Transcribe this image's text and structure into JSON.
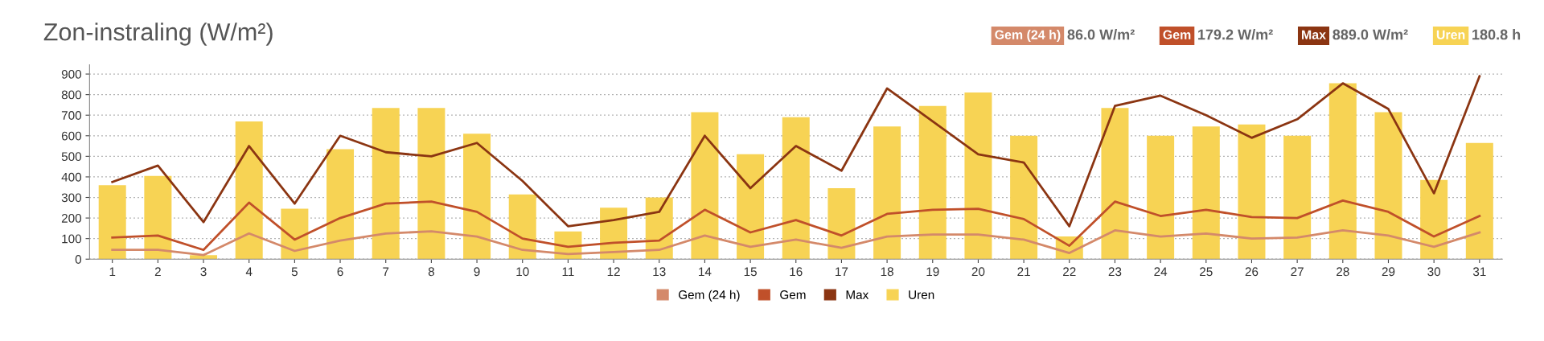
{
  "chart_data": {
    "type": "bar",
    "title": "Zon-instraling (W/m²)",
    "categories": [
      "1",
      "2",
      "3",
      "4",
      "5",
      "6",
      "7",
      "8",
      "9",
      "10",
      "11",
      "12",
      "13",
      "14",
      "15",
      "16",
      "17",
      "18",
      "19",
      "20",
      "21",
      "22",
      "23",
      "24",
      "25",
      "26",
      "27",
      "28",
      "29",
      "30",
      "31"
    ],
    "series": [
      {
        "name": "Gem (24 h)",
        "type": "line",
        "color": "#d4896a",
        "values": [
          45,
          45,
          20,
          125,
          40,
          90,
          125,
          135,
          110,
          45,
          25,
          35,
          45,
          115,
          60,
          95,
          55,
          110,
          120,
          120,
          95,
          30,
          140,
          110,
          125,
          100,
          105,
          140,
          115,
          60,
          130
        ]
      },
      {
        "name": "Gem",
        "type": "line",
        "color": "#c0502a",
        "values": [
          105,
          115,
          45,
          275,
          95,
          200,
          270,
          280,
          230,
          100,
          60,
          80,
          90,
          240,
          130,
          190,
          115,
          220,
          240,
          245,
          195,
          65,
          280,
          210,
          240,
          205,
          200,
          285,
          230,
          110,
          210
        ]
      },
      {
        "name": "Max",
        "type": "line",
        "color": "#8b3512",
        "values": [
          375,
          455,
          180,
          550,
          270,
          600,
          520,
          500,
          565,
          380,
          160,
          190,
          230,
          600,
          345,
          550,
          430,
          830,
          670,
          510,
          470,
          160,
          745,
          795,
          700,
          590,
          680,
          855,
          730,
          320,
          889
        ]
      },
      {
        "name": "Uren",
        "color": "#f7d354",
        "values": [
          360,
          405,
          20,
          670,
          245,
          535,
          735,
          735,
          610,
          315,
          135,
          250,
          300,
          715,
          510,
          690,
          345,
          645,
          745,
          810,
          600,
          110,
          735,
          600,
          645,
          655,
          600,
          855,
          715,
          385,
          565
        ]
      }
    ],
    "annotations": [
      "86.0 W/m²",
      "179.2 W/m²",
      "889.0 W/m²",
      "180.8 h"
    ],
    "ylim": [
      0,
      945
    ],
    "yticks": [
      0,
      100,
      200,
      300,
      400,
      500,
      600,
      700,
      800,
      900
    ],
    "grid": "y",
    "legend": "bottom",
    "marker": "none",
    "line_style": "solid"
  }
}
